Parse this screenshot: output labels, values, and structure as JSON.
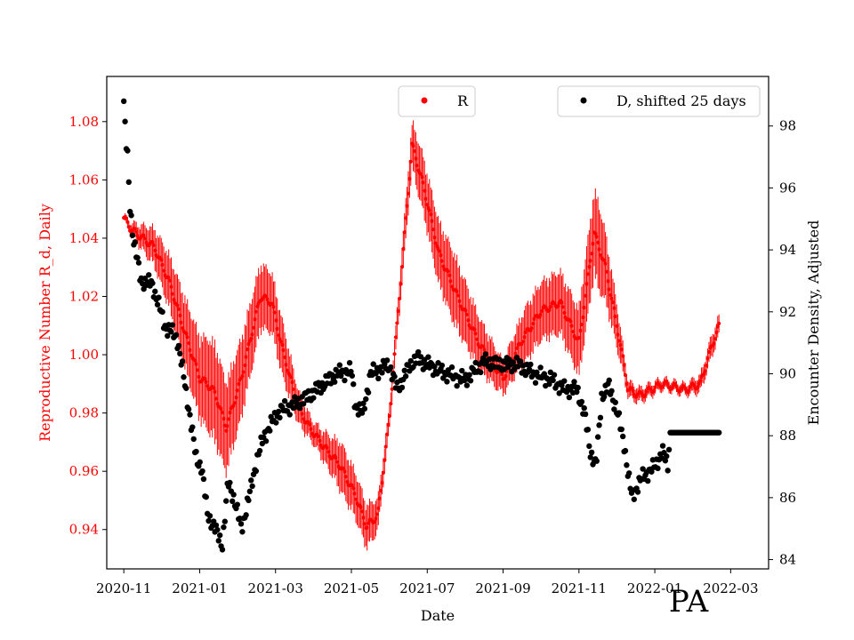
{
  "chart_data": {
    "type": "scatter",
    "title": "",
    "corner_label": "PA",
    "xlabel": "Date",
    "ylabel_left": "Reproductive Number R_d, Daily",
    "ylabel_right": "Encounter Density, Adjusted",
    "x_ticks": [
      "2020-11",
      "2021-01",
      "2021-03",
      "2021-05",
      "2021-07",
      "2021-09",
      "2021-11",
      "2022-01",
      "2022-03"
    ],
    "y_left_ticks": [
      0.94,
      0.96,
      0.98,
      1.0,
      1.02,
      1.04,
      1.06,
      1.08
    ],
    "y_left_tick_labels": [
      "0.94",
      "0.96",
      "0.98",
      "1.00",
      "1.02",
      "1.04",
      "1.06",
      "1.08"
    ],
    "y_right_ticks": [
      84,
      86,
      88,
      90,
      92,
      94,
      96,
      98
    ],
    "ylim_left": [
      0.9265,
      1.0955
    ],
    "ylim_right": [
      83.7,
      99.6
    ],
    "x_range_months": [
      -0.45,
      17.0
    ],
    "colors": {
      "r_series": "#ff0000",
      "d_series": "#000000",
      "left_axis": "#ff0000",
      "right_axis": "#000000"
    },
    "legend": [
      {
        "label": "R",
        "color": "#ff0000",
        "location": "top-center"
      },
      {
        "label": "D, shifted 25 days",
        "color": "#000000",
        "location": "top-right"
      }
    ],
    "series": [
      {
        "name": "R",
        "axis": "left",
        "error_bar_half_width_keypoints_x": [
          0.0,
          1.5,
          2.4,
          3.0,
          3.6,
          4.2,
          4.6,
          5.0,
          5.5,
          5.7,
          6.4,
          7.0,
          7.8,
          8.7,
          9.5,
          10.0,
          10.6,
          11.2,
          11.9,
          12.5,
          13.3,
          14.2,
          14.8,
          15.5,
          16.1
        ],
        "error_bar_half_width_keypoints_value": [
          0.001,
          0.012,
          0.018,
          0.015,
          0.012,
          0.01,
          0.006,
          0.004,
          0.007,
          0.009,
          0.008,
          0.004,
          0.01,
          0.013,
          0.009,
          0.006,
          0.01,
          0.011,
          0.012,
          0.016,
          0.003,
          0.002,
          0.002,
          0.004,
          0.003
        ],
        "key_points_x_months": [
          0.0,
          0.2,
          0.5,
          0.8,
          1.2,
          1.6,
          2.0,
          2.2,
          2.4,
          2.7,
          3.1,
          3.6,
          3.9,
          4.2,
          4.6,
          4.9,
          5.3,
          5.7,
          6.1,
          6.4,
          6.7,
          7.0,
          7.3,
          7.6,
          7.9,
          8.3,
          8.8,
          9.4,
          10.0,
          10.5,
          11.0,
          11.5,
          12.0,
          12.4,
          12.7,
          13.0,
          13.3,
          13.6,
          14.2,
          14.8,
          15.2,
          15.5,
          15.7
        ],
        "key_points_y": [
          1.047,
          1.043,
          1.04,
          1.037,
          1.025,
          1.008,
          0.992,
          0.99,
          0.987,
          0.975,
          0.992,
          1.02,
          1.018,
          1.001,
          0.982,
          0.975,
          0.968,
          0.962,
          0.952,
          0.941,
          0.945,
          0.978,
          1.025,
          1.072,
          1.058,
          1.035,
          1.02,
          1.003,
          0.992,
          1.005,
          1.015,
          1.018,
          1.004,
          1.042,
          1.03,
          1.01,
          0.988,
          0.986,
          0.99,
          0.988,
          0.99,
          1.003,
          1.01
        ]
      },
      {
        "name": "D, shifted 25 days",
        "axis": "right",
        "key_points_x_months": [
          0.0,
          0.05,
          0.1,
          0.15,
          0.25,
          0.45,
          0.75,
          1.1,
          1.4,
          1.7,
          1.9,
          2.05,
          2.2,
          2.4,
          2.6,
          2.75,
          2.9,
          3.1,
          3.3,
          3.5,
          3.7,
          4.1,
          4.5,
          4.9,
          5.3,
          5.6,
          6.0,
          6.1,
          6.3,
          6.5,
          6.7,
          7.0,
          7.2,
          7.35,
          7.55,
          7.75,
          8.0,
          8.5,
          9.0,
          9.5,
          10.0,
          10.4,
          10.8,
          11.3,
          11.6,
          11.95,
          12.15,
          12.3,
          12.45,
          12.6,
          12.8,
          13.0,
          13.2,
          13.3,
          13.4,
          13.5,
          13.7,
          14.0,
          14.2,
          14.35,
          14.4,
          14.6,
          14.8,
          15.0,
          15.2,
          15.4,
          15.7
        ],
        "key_points_y": [
          98.8,
          97.5,
          97.0,
          95.6,
          94.4,
          93.0,
          92.9,
          91.5,
          91.2,
          89.0,
          87.3,
          87.0,
          85.5,
          85.0,
          84.5,
          86.5,
          86.0,
          85.0,
          86.0,
          87.2,
          88.0,
          88.8,
          89.0,
          89.3,
          89.7,
          90.0,
          90.1,
          89.0,
          88.7,
          90.0,
          90.1,
          90.3,
          89.5,
          89.8,
          90.3,
          90.5,
          90.3,
          90.0,
          89.8,
          90.4,
          90.3,
          90.3,
          90.0,
          89.8,
          89.5,
          89.5,
          88.7,
          87.5,
          87.0,
          89.3,
          89.6,
          88.8,
          87.7,
          86.7,
          86.0,
          86.3,
          86.7,
          87.0,
          87.5,
          87.0,
          88.1,
          88.1,
          88.1,
          88.1,
          88.1,
          88.1,
          88.1
        ]
      }
    ]
  }
}
